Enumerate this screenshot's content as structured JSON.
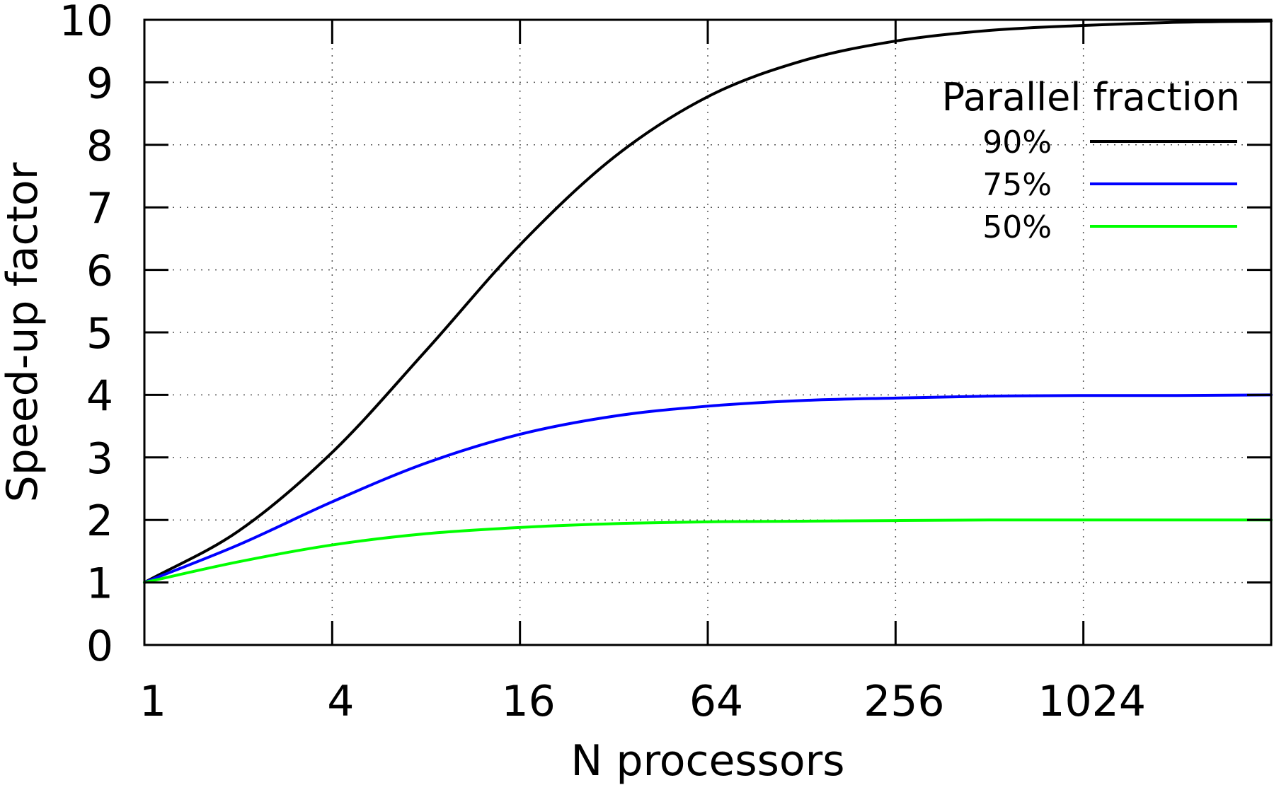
{
  "chart_data": {
    "type": "line",
    "xlabel": "N processors",
    "ylabel": "Speed-up factor",
    "x_scale": "log2",
    "xlim": [
      1,
      4096
    ],
    "ylim": [
      0,
      10
    ],
    "x_ticks": [
      1,
      4,
      16,
      64,
      256,
      1024
    ],
    "x_tick_labels": [
      "1",
      "4",
      "16",
      "64",
      "256",
      "1024"
    ],
    "y_ticks": [
      0,
      1,
      2,
      3,
      4,
      5,
      6,
      7,
      8,
      9,
      10
    ],
    "y_tick_labels": [
      "0",
      "1",
      "2",
      "3",
      "4",
      "5",
      "6",
      "7",
      "8",
      "9",
      "10"
    ],
    "grid": true,
    "legend": {
      "title": "Parallel fraction",
      "position": "top-right"
    },
    "x": [
      1,
      2,
      4,
      8,
      16,
      32,
      64,
      128,
      256,
      512,
      1024,
      2048,
      4096
    ],
    "series": [
      {
        "name": "90%",
        "color": "#000000",
        "values": [
          1.0,
          1.82,
          3.08,
          4.71,
          6.4,
          7.8,
          8.77,
          9.34,
          9.66,
          9.83,
          9.91,
          9.96,
          9.98
        ]
      },
      {
        "name": "75%",
        "color": "#0000ff",
        "values": [
          1.0,
          1.6,
          2.29,
          2.91,
          3.37,
          3.66,
          3.82,
          3.91,
          3.95,
          3.98,
          3.99,
          3.99,
          4.0
        ]
      },
      {
        "name": "50%",
        "color": "#00ff00",
        "values": [
          1.0,
          1.33,
          1.6,
          1.78,
          1.88,
          1.94,
          1.97,
          1.98,
          1.99,
          2.0,
          2.0,
          2.0,
          2.0
        ]
      }
    ]
  }
}
